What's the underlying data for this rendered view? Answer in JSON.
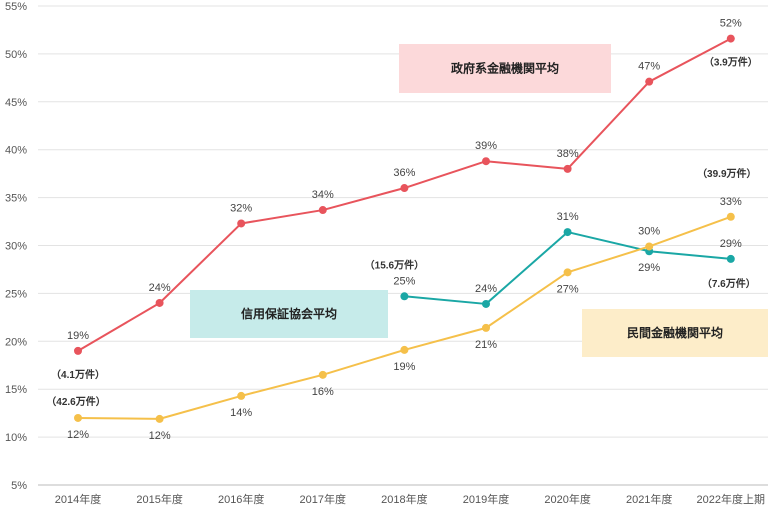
{
  "chart_data": {
    "type": "line",
    "categories": [
      "2014年度",
      "2015年度",
      "2016年度",
      "2017年度",
      "2018年度",
      "2019年度",
      "2020年度",
      "2021年度",
      "2022年度上期"
    ],
    "yticks": [
      "5%",
      "10%",
      "15%",
      "20%",
      "25%",
      "30%",
      "35%",
      "40%",
      "45%",
      "50%",
      "55%"
    ],
    "ylim": [
      5,
      55
    ],
    "grid": true,
    "series": [
      {
        "name": "政府系金融機関平均",
        "color": "#e8545c",
        "values": [
          19,
          24,
          32.3,
          33.7,
          36,
          38.8,
          38,
          47.1,
          51.6
        ],
        "labels": [
          "19%",
          "24%",
          "32%",
          "34%",
          "36%",
          "39%",
          "38%",
          "47%",
          "52%"
        ],
        "label_pos": [
          "above",
          "above",
          "above",
          "above",
          "above",
          "above",
          "above",
          "above",
          "above"
        ]
      },
      {
        "name": "信用保証協会平均",
        "color": "#1aa7a5",
        "values": [
          null,
          null,
          null,
          null,
          24.7,
          23.9,
          31.4,
          29.4,
          28.6
        ],
        "labels": [
          "",
          "",
          "",
          "",
          "25%",
          "24%",
          "31%",
          "29%",
          "29%"
        ],
        "label_pos": [
          "",
          "",
          "",
          "",
          "above",
          "above",
          "above",
          "below",
          "above"
        ]
      },
      {
        "name": "民間金融機関平均",
        "color": "#f5c04a",
        "values": [
          12,
          11.9,
          14.3,
          16.5,
          19.1,
          21.4,
          27.2,
          29.9,
          33
        ],
        "labels": [
          "12%",
          "12%",
          "14%",
          "16%",
          "19%",
          "21%",
          "27%",
          "30%",
          "33%"
        ],
        "label_pos": [
          "below",
          "below",
          "below",
          "below",
          "below",
          "below",
          "below",
          "above",
          "above"
        ]
      }
    ],
    "legend_boxes": [
      {
        "series": 0,
        "text": "政府系金融機関平均",
        "fill": "#fcd9da"
      },
      {
        "series": 1,
        "text": "信用保証協会平均",
        "fill": "#c6ebea"
      },
      {
        "series": 2,
        "text": "民間金融機関平均",
        "fill": "#fdedc9"
      }
    ],
    "annotations": [
      {
        "text": "（4.1万件）",
        "series": 0,
        "index": 0
      },
      {
        "text": "（42.6万件）",
        "series": 2,
        "index": 0
      },
      {
        "text": "（15.6万件）",
        "series": 1,
        "index": 4
      },
      {
        "text": "（3.9万件）",
        "series": 0,
        "index": 8
      },
      {
        "text": "（39.9万件）",
        "series": 2,
        "index": 8
      },
      {
        "text": "（7.6万件）",
        "series": 1,
        "index": 8
      }
    ]
  }
}
